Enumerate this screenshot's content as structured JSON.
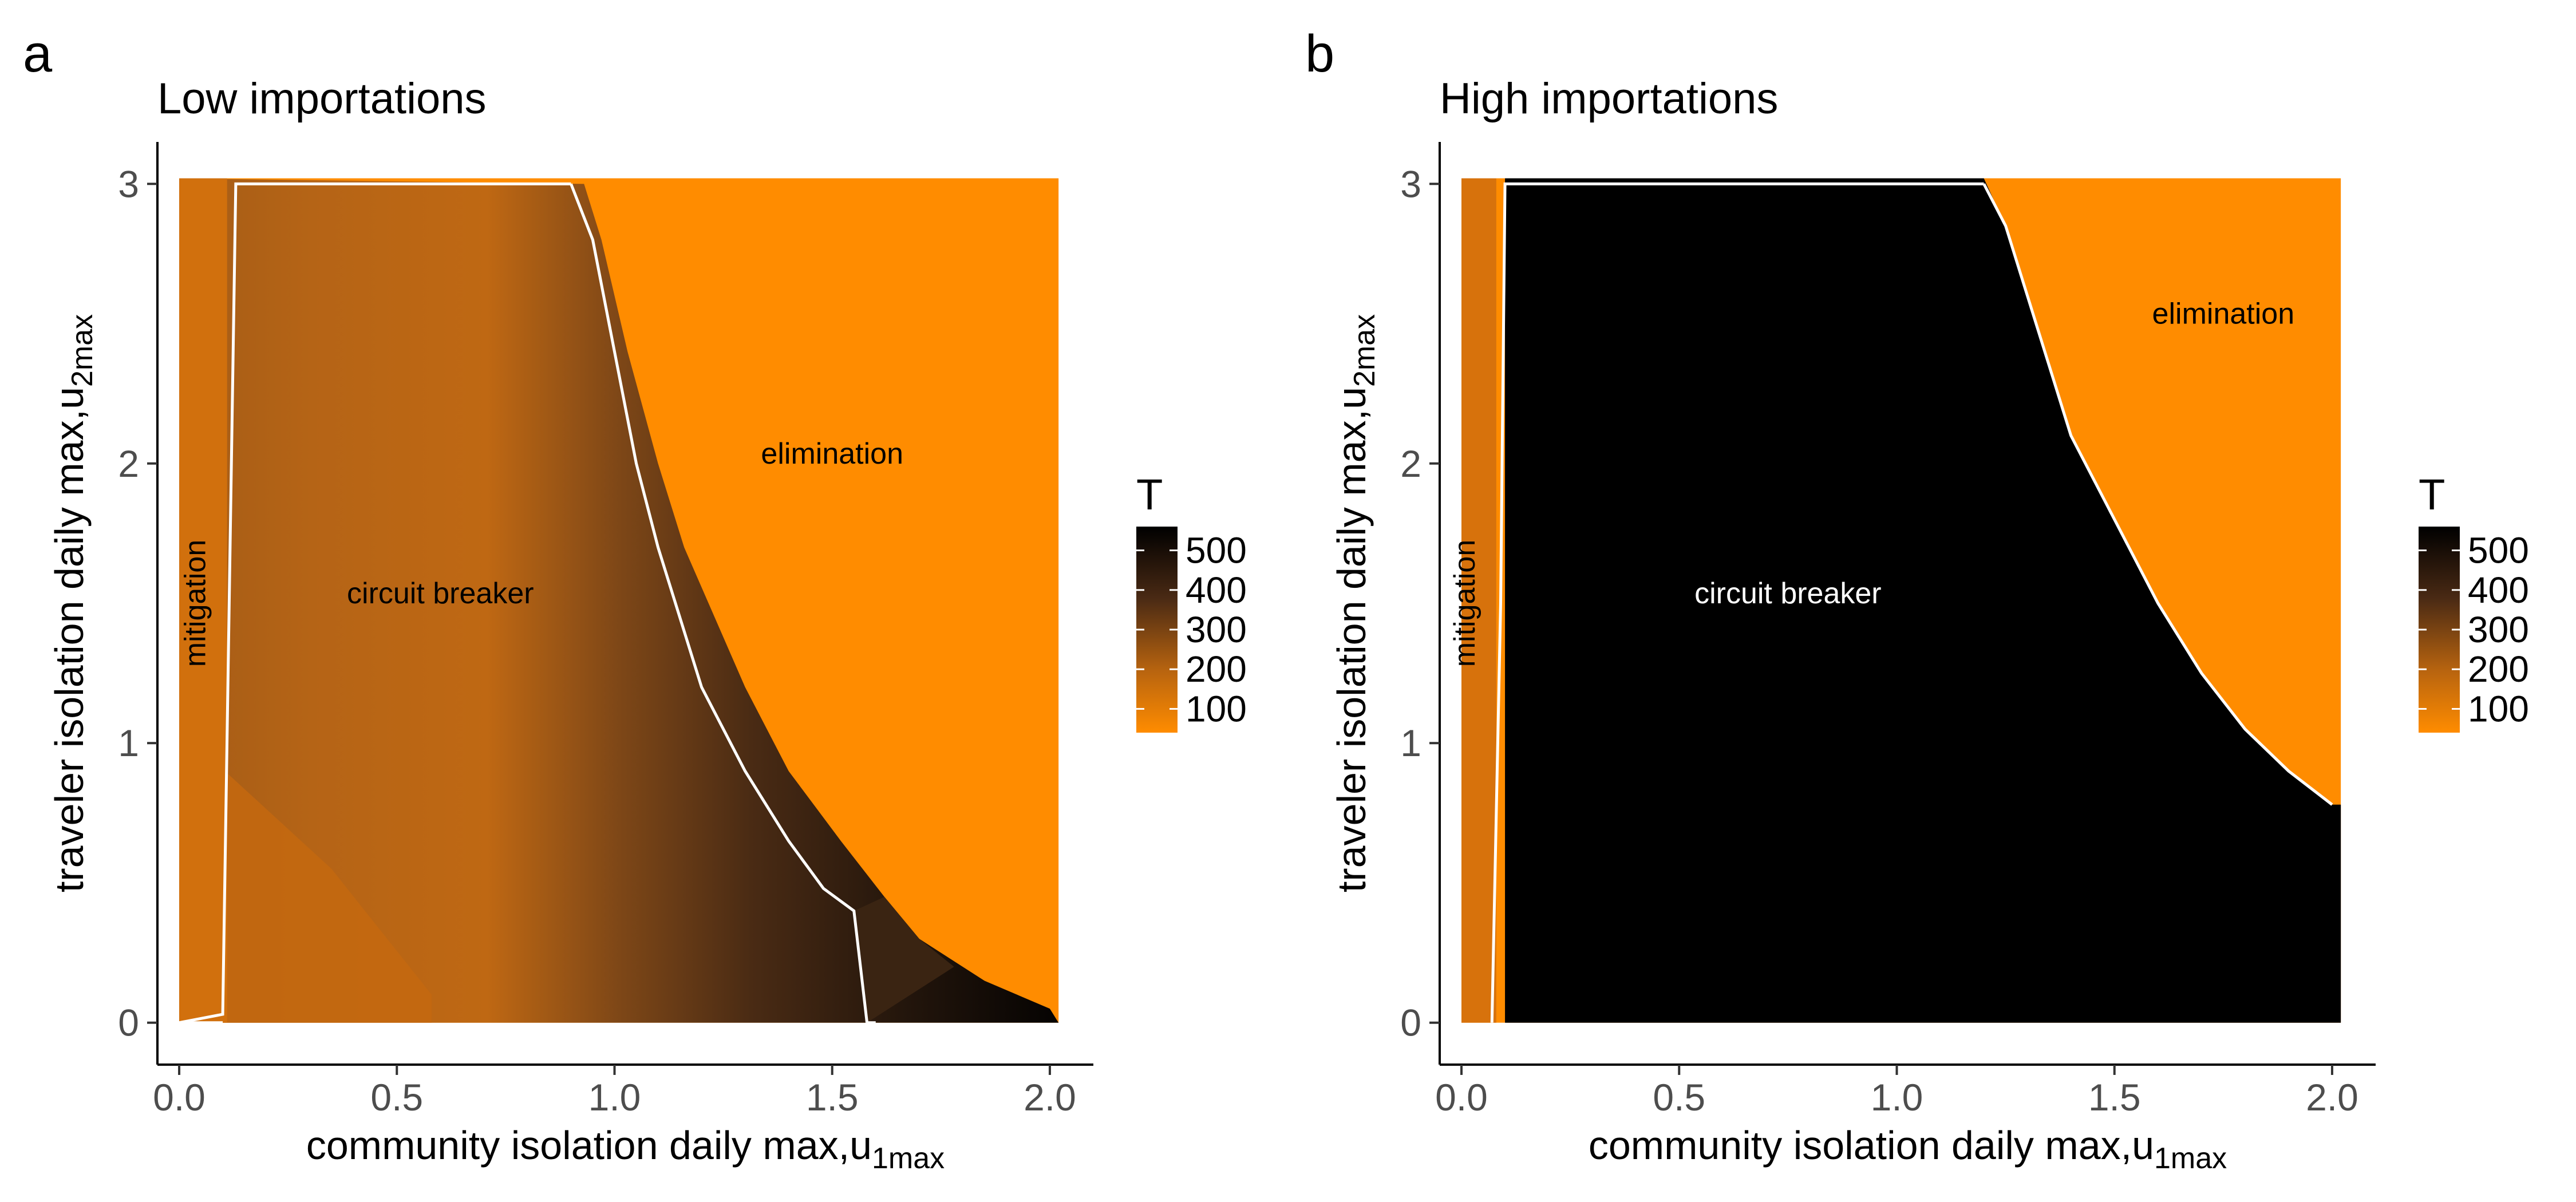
{
  "chart_data": [
    {
      "type": "heatmap",
      "panel_letter": "a",
      "title": "Low importations",
      "xlabel": "community isolation daily max,",
      "xlabel_symbol": "u",
      "xlabel_subscript": "1max",
      "ylabel": "traveler isolation daily max,",
      "ylabel_symbol": "u",
      "ylabel_subscript": "2max",
      "xlim": [
        -0.05,
        2.1
      ],
      "ylim": [
        -0.15,
        3.15
      ],
      "x_ticks": [
        "0.0",
        "0.5",
        "1.0",
        "1.5",
        "2.0"
      ],
      "y_ticks": [
        "0",
        "1",
        "2",
        "3"
      ],
      "grid": false,
      "legend": {
        "title": "T",
        "position": "right",
        "ticks": [
          "100",
          "200",
          "300",
          "400",
          "500"
        ],
        "range": [
          40,
          560
        ]
      },
      "color_scale": [
        "#ff8c00",
        "#cc6a10",
        "#5c3516",
        "#000000"
      ],
      "region_labels": [
        {
          "text": "mitigation",
          "x": 0.06,
          "y": 1.5,
          "rotate": true,
          "color": "#000000"
        },
        {
          "text": "circuit breaker",
          "x": 0.6,
          "y": 1.5,
          "rotate": false,
          "color": "#000000"
        },
        {
          "text": "elimination",
          "x": 1.5,
          "y": 2.0,
          "rotate": false,
          "color": "#000000"
        }
      ],
      "boundary_left": [
        [
          0.0,
          0.0
        ],
        [
          0.1,
          0.03
        ],
        [
          0.13,
          3.0
        ]
      ],
      "boundary_right": [
        [
          0.9,
          3.0
        ],
        [
          0.95,
          2.8
        ],
        [
          1.0,
          2.4
        ],
        [
          1.05,
          2.0
        ],
        [
          1.1,
          1.7
        ],
        [
          1.15,
          1.45
        ],
        [
          1.2,
          1.2
        ],
        [
          1.3,
          0.9
        ],
        [
          1.4,
          0.65
        ],
        [
          1.48,
          0.48
        ],
        [
          1.55,
          0.4
        ],
        [
          1.58,
          0.0
        ]
      ],
      "elimination_edge": [
        [
          0.93,
          3.0
        ],
        [
          0.97,
          2.8
        ],
        [
          1.03,
          2.4
        ],
        [
          1.1,
          2.0
        ],
        [
          1.16,
          1.7
        ],
        [
          1.23,
          1.45
        ],
        [
          1.3,
          1.2
        ],
        [
          1.4,
          0.9
        ],
        [
          1.52,
          0.65
        ],
        [
          1.62,
          0.45
        ],
        [
          1.7,
          0.3
        ],
        [
          1.85,
          0.15
        ],
        [
          2.0,
          0.05
        ]
      ]
    },
    {
      "type": "heatmap",
      "panel_letter": "b",
      "title": "High importations",
      "xlabel": "community isolation daily max,",
      "xlabel_symbol": "u",
      "xlabel_subscript": "1max",
      "ylabel": "traveler isolation daily max,",
      "ylabel_symbol": "u",
      "ylabel_subscript": "2max",
      "xlim": [
        -0.05,
        2.1
      ],
      "ylim": [
        -0.15,
        3.15
      ],
      "x_ticks": [
        "0.0",
        "0.5",
        "1.0",
        "1.5",
        "2.0"
      ],
      "y_ticks": [
        "0",
        "1",
        "2",
        "3"
      ],
      "grid": false,
      "legend": {
        "title": "T",
        "position": "right",
        "ticks": [
          "100",
          "200",
          "300",
          "400",
          "500"
        ],
        "range": [
          40,
          560
        ]
      },
      "color_scale": [
        "#ff8c00",
        "#cc6a10",
        "#5c3516",
        "#000000"
      ],
      "region_labels": [
        {
          "text": "mitigation",
          "x": 0.03,
          "y": 1.5,
          "rotate": true,
          "color": "#000000"
        },
        {
          "text": "circuit breaker",
          "x": 0.75,
          "y": 1.5,
          "rotate": false,
          "color": "#ffffff"
        },
        {
          "text": "elimination",
          "x": 1.75,
          "y": 2.5,
          "rotate": false,
          "color": "#000000"
        }
      ],
      "boundary_left": [
        [
          0.07,
          0.0
        ],
        [
          0.09,
          1.5
        ],
        [
          0.1,
          3.0
        ]
      ],
      "boundary_right": [
        [
          1.2,
          3.0
        ],
        [
          1.25,
          2.85
        ],
        [
          1.3,
          2.6
        ],
        [
          1.35,
          2.35
        ],
        [
          1.4,
          2.1
        ],
        [
          1.5,
          1.8
        ],
        [
          1.6,
          1.5
        ],
        [
          1.7,
          1.25
        ],
        [
          1.8,
          1.05
        ],
        [
          1.9,
          0.9
        ],
        [
          2.0,
          0.78
        ]
      ]
    }
  ]
}
